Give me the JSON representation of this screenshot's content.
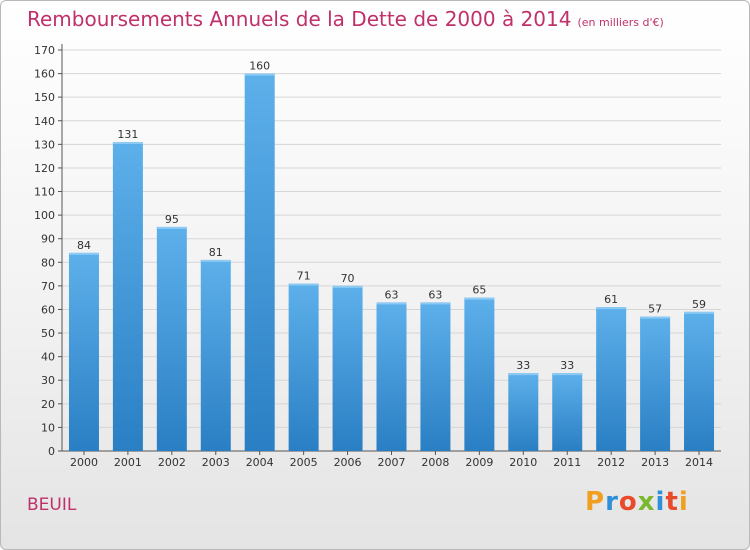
{
  "header": {
    "title": "Remboursements Annuels de la Dette de 2000 à 2014",
    "unit": "(en milliers d'€)"
  },
  "footer": {
    "commune": "BEUIL",
    "logo_text": "Proxiti"
  },
  "colors": {
    "title": "#c0306a",
    "bar_top": "#5db0ea",
    "bar_bottom": "#2a7fc4",
    "grid": "#d6d6d6",
    "logo_letters": [
      "#f0a020",
      "#2f8fd8",
      "#e84a2a",
      "#7ab82e",
      "#2f8fd8",
      "#e84a2a",
      "#f0a020"
    ]
  },
  "chart_data": {
    "type": "bar",
    "title": "Remboursements Annuels de la Dette de 2000 à 2014",
    "xlabel": "",
    "ylabel": "",
    "categories": [
      "2000",
      "2001",
      "2002",
      "2003",
      "2004",
      "2005",
      "2006",
      "2007",
      "2008",
      "2009",
      "2010",
      "2011",
      "2012",
      "2013",
      "2014"
    ],
    "values": [
      84,
      131,
      95,
      81,
      160,
      71,
      70,
      63,
      63,
      65,
      33,
      33,
      61,
      57,
      59
    ],
    "ylim": [
      0,
      170
    ],
    "yticks": [
      0,
      10,
      20,
      30,
      40,
      50,
      60,
      70,
      80,
      90,
      100,
      110,
      120,
      130,
      140,
      150,
      160,
      170
    ],
    "grid": true,
    "data_labels": true
  }
}
